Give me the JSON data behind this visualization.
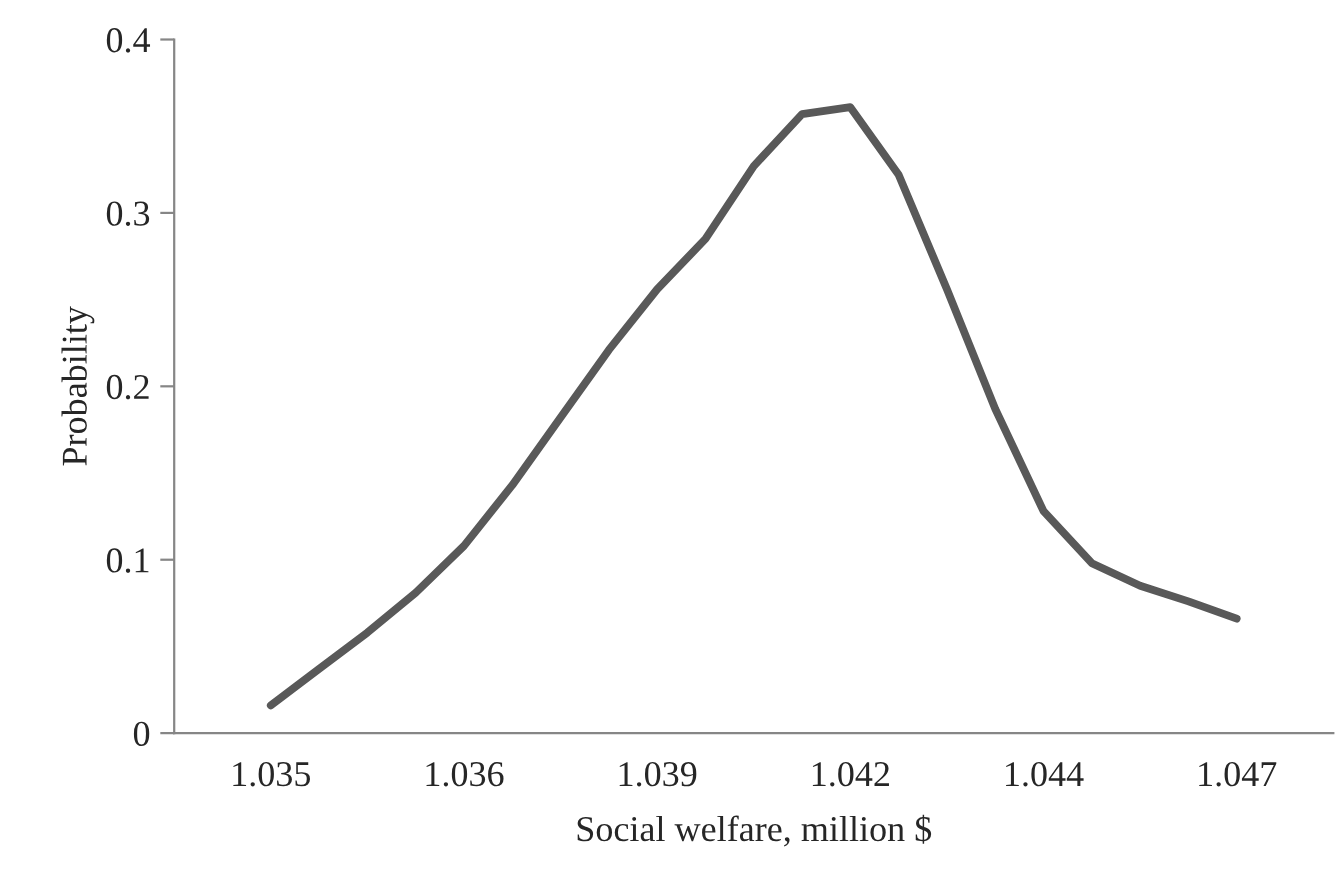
{
  "chart_data": {
    "type": "line",
    "xlabel": "Social welfare, million $",
    "ylabel": "Probability",
    "categories": [
      "1.035",
      null,
      null,
      null,
      "1.036",
      null,
      null,
      null,
      "1.039",
      null,
      null,
      null,
      "1.042",
      null,
      null,
      null,
      "1.044",
      null,
      null,
      null,
      "1.047"
    ],
    "series": [
      {
        "color": "#595959",
        "values": [
          0.016,
          0.037,
          0.058,
          0.081,
          0.108,
          0.143,
          0.182,
          0.221,
          0.256,
          0.285,
          0.327,
          0.357,
          0.361,
          0.322,
          0.256,
          0.187,
          0.128,
          0.098,
          0.085,
          0.076,
          0.066
        ]
      }
    ],
    "ylim": [
      0,
      0.4
    ],
    "yticks": [
      0,
      0.1,
      0.2,
      0.3,
      0.4
    ],
    "grid": false,
    "legend": false,
    "marker": "none",
    "line_style": "solid"
  }
}
